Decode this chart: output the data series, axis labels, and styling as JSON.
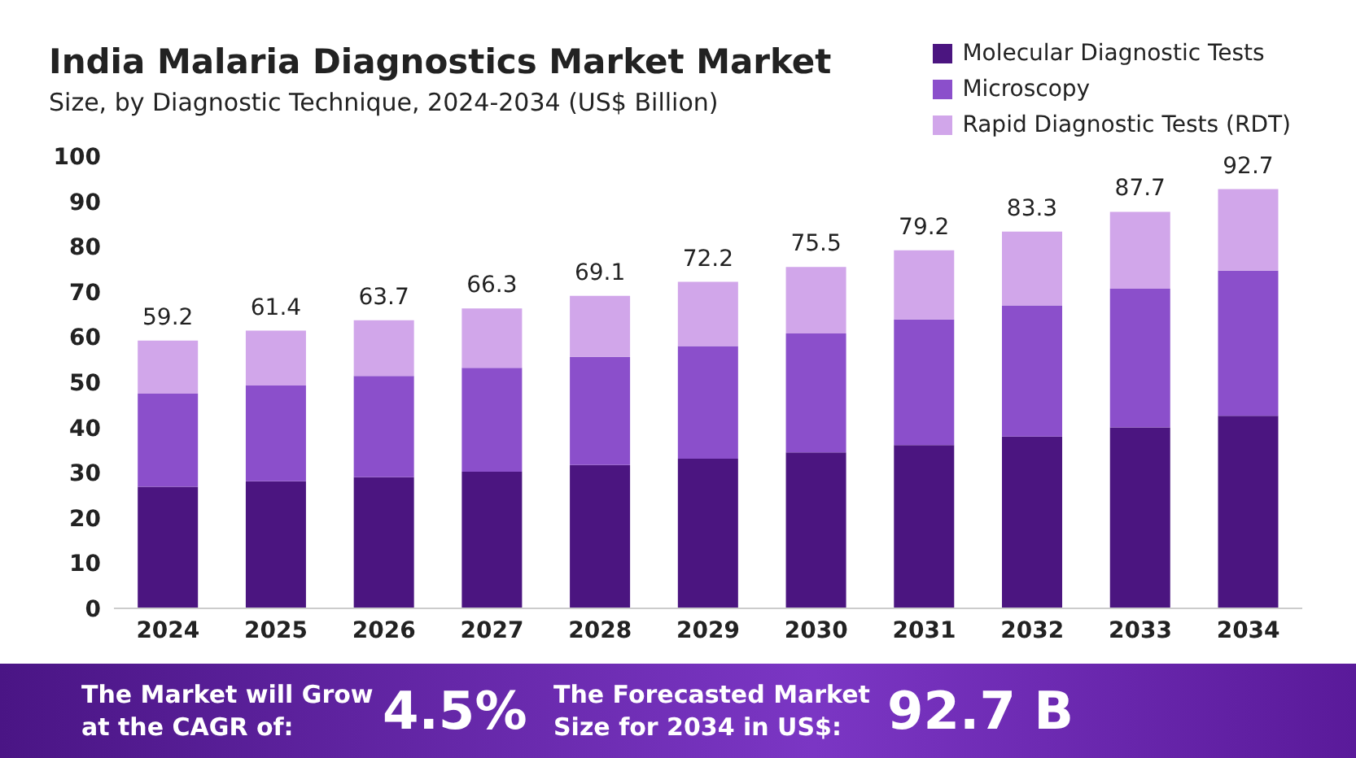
{
  "chart_data": {
    "type": "bar",
    "title": "India Malaria Diagnostics Market Market",
    "subtitle": "Size, by Diagnostic Technique, 2024-2034 (US$ Billion)",
    "categories": [
      "2024",
      "2025",
      "2026",
      "2027",
      "2028",
      "2029",
      "2030",
      "2031",
      "2032",
      "2033",
      "2034"
    ],
    "series": [
      {
        "name": "Molecular Diagnostic Tests",
        "color": "#4b1580",
        "values": [
          26.9,
          28.1,
          29.0,
          30.2,
          31.7,
          33.1,
          34.5,
          36.1,
          38.0,
          40.0,
          42.6
        ]
      },
      {
        "name": "Microscopy",
        "color": "#8b4fcb",
        "values": [
          20.6,
          21.2,
          22.4,
          23.0,
          23.9,
          24.9,
          26.3,
          27.8,
          29.0,
          30.7,
          32.1
        ]
      },
      {
        "name": "Rapid Diagnostic Tests (RDT)",
        "color": "#d1a6ea",
        "values": [
          11.7,
          12.1,
          12.3,
          13.1,
          13.5,
          14.2,
          14.7,
          15.3,
          16.3,
          17.0,
          18.0
        ]
      }
    ],
    "stacked": true,
    "totals": [
      "59.2",
      "61.4",
      "63.7",
      "66.3",
      "69.1",
      "72.2",
      "75.5",
      "79.2",
      "83.3",
      "87.7",
      "92.7"
    ],
    "ylim": [
      0,
      100
    ],
    "yticks": [
      0,
      10,
      20,
      30,
      40,
      50,
      60,
      70,
      80,
      90,
      100
    ],
    "grid": false,
    "legend": "top right",
    "annotations": [
      "The Market will Grow at the CAGR of:",
      "4.5%",
      "The Forecasted Market Size for 2034 in US$:",
      "92.7 B"
    ]
  }
}
